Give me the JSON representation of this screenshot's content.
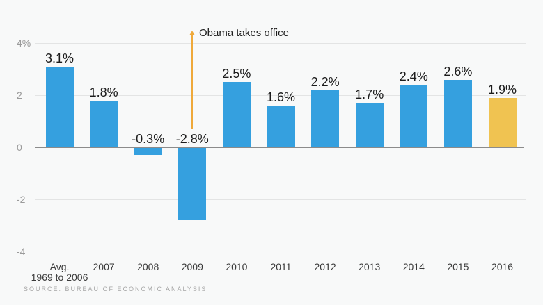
{
  "chart_data": {
    "type": "bar",
    "categories": [
      "Avg.\n1969 to 2006",
      "2007",
      "2008",
      "2009",
      "2010",
      "2011",
      "2012",
      "2013",
      "2014",
      "2015",
      "2016"
    ],
    "values": [
      3.1,
      1.8,
      -0.3,
      -2.8,
      2.5,
      1.6,
      2.2,
      1.7,
      2.4,
      2.6,
      1.9
    ],
    "value_labels": [
      "3.1%",
      "1.8%",
      "-0.3%",
      "-2.8%",
      "2.5%",
      "1.6%",
      "2.2%",
      "1.7%",
      "2.4%",
      "2.6%",
      "1.9%"
    ],
    "y_ticks": [
      {
        "label": "4%",
        "value": 4
      },
      {
        "label": "2",
        "value": 2
      },
      {
        "label": "0",
        "value": 0
      },
      {
        "label": "-2",
        "value": -2
      },
      {
        "label": "-4",
        "value": -4
      }
    ],
    "ylim": [
      -4,
      4
    ],
    "grid": true,
    "legend": "none",
    "bar_color": "#35a0df",
    "highlight_color": "#f0c351",
    "highlight_index": 10,
    "annotation": {
      "text": "Obama takes office",
      "category_index": 3,
      "line_color": "#efa93a"
    }
  },
  "source": {
    "label": "SOURCE: BUREAU OF ECONOMIC ANALYSIS"
  }
}
